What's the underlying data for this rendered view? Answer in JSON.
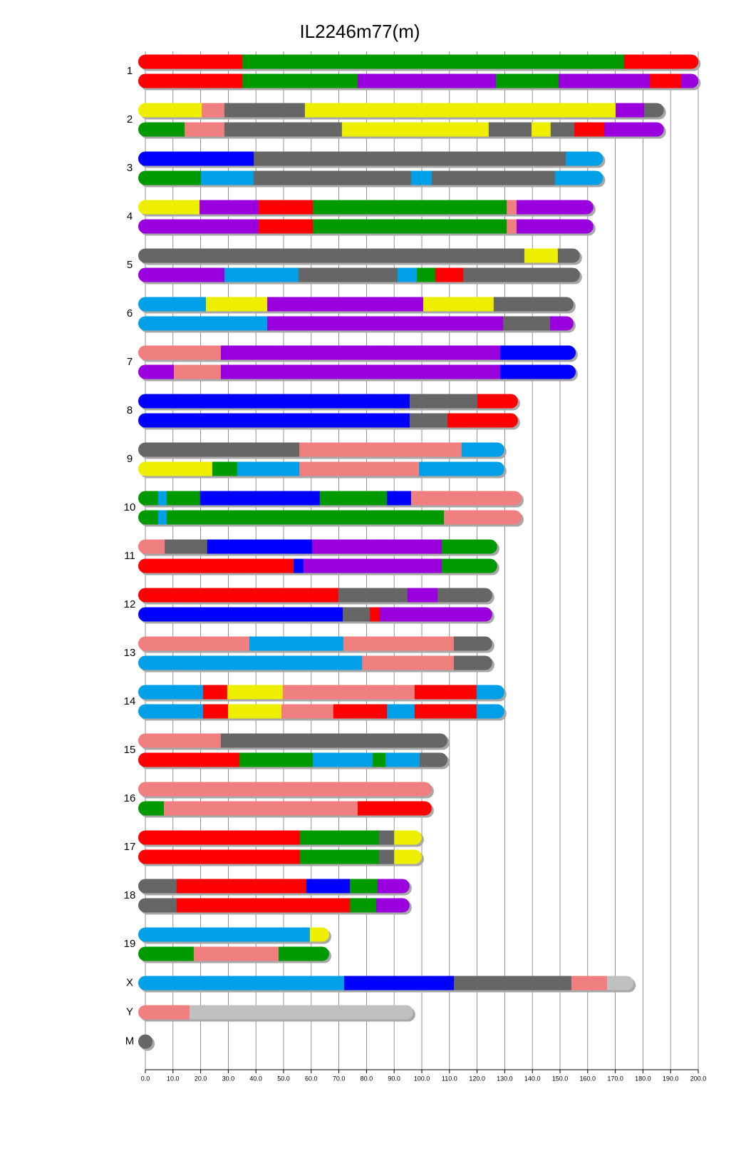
{
  "chart_data": {
    "type": "ideogram",
    "title": "IL2246m77(m)",
    "xlim": [
      0,
      200
    ],
    "xticks": [
      {
        "value": 0,
        "label": "0.0"
      },
      {
        "value": 10,
        "label": "10.0"
      },
      {
        "value": 20,
        "label": "20.0"
      },
      {
        "value": 30,
        "label": "30.0"
      },
      {
        "value": 40,
        "label": "40.0"
      },
      {
        "value": 50,
        "label": "50.0"
      },
      {
        "value": 60,
        "label": "60.0"
      },
      {
        "value": 70,
        "label": "70.0"
      },
      {
        "value": 80,
        "label": "80.0"
      },
      {
        "value": 90,
        "label": "90.0"
      },
      {
        "value": 100,
        "label": "100.0"
      },
      {
        "value": 110,
        "label": "110.0"
      },
      {
        "value": 120,
        "label": "120.0"
      },
      {
        "value": 130,
        "label": "130.0"
      },
      {
        "value": 140,
        "label": "140.0"
      },
      {
        "value": 150,
        "label": "150.0"
      },
      {
        "value": 160,
        "label": "160.0"
      },
      {
        "value": 170,
        "label": "170.0"
      },
      {
        "value": 180,
        "label": "180.0"
      },
      {
        "value": 190,
        "label": "190.0"
      },
      {
        "value": 200,
        "label": "200.0"
      }
    ],
    "grid": true,
    "chromosomes": [
      {
        "name": "1",
        "haplotypes": [
          {
            "ends": [
              35.1,
              173.2,
              197.5
            ],
            "colors": [
              "#ff0000",
              "#009900",
              "#ff0000"
            ]
          },
          {
            "ends": [
              35.1,
              76.8,
              126.8,
              149.5,
              182.5,
              193.8,
              197.5
            ],
            "colors": [
              "#ff0000",
              "#009900",
              "#9900dd",
              "#009900",
              "#9900dd",
              "#ff0000",
              "#9900dd"
            ]
          }
        ]
      },
      {
        "name": "2",
        "haplotypes": [
          {
            "ends": [
              20.4,
              28.6,
              57.7,
              170.1,
              180.4,
              185
            ],
            "colors": [
              "#eeee00",
              "#f08080",
              "#666666",
              "#eeee00",
              "#9900dd",
              "#666666"
            ]
          },
          {
            "ends": [
              14.2,
              28.6,
              71.1,
              124.2,
              139.7,
              146.6,
              155.2,
              166,
              185
            ],
            "colors": [
              "#009900",
              "#f08080",
              "#666666",
              "#eeee00",
              "#666666",
              "#eeee00",
              "#666666",
              "#ff0000",
              "#9900dd"
            ]
          }
        ]
      },
      {
        "name": "3",
        "haplotypes": [
          {
            "ends": [
              39.2,
              152.1,
              163
            ],
            "colors": [
              "#0000ff",
              "#666666",
              "#00a0e8"
            ]
          },
          {
            "ends": [
              20.1,
              39.2,
              96.1,
              103.6,
              148.2,
              163
            ],
            "colors": [
              "#009900",
              "#00a0e8",
              "#666666",
              "#00a0e8",
              "#666666",
              "#00a0e8"
            ]
          }
        ]
      },
      {
        "name": "4",
        "haplotypes": [
          {
            "ends": [
              19.6,
              41,
              60.6,
              130.7,
              134.3,
              159.5
            ],
            "colors": [
              "#eeee00",
              "#9900dd",
              "#ff0000",
              "#009900",
              "#f08080",
              "#9900dd"
            ]
          },
          {
            "ends": [
              41,
              60.6,
              130.7,
              134.3,
              159.5
            ],
            "colors": [
              "#9900dd",
              "#ff0000",
              "#009900",
              "#f08080",
              "#9900dd"
            ]
          }
        ]
      },
      {
        "name": "5",
        "haplotypes": [
          {
            "ends": [
              137.1,
              149.2,
              154.6
            ],
            "colors": [
              "#666666",
              "#eeee00",
              "#666666"
            ]
          },
          {
            "ends": [
              28.6,
              55.4,
              91.2,
              98.2,
              104.9,
              115,
              154.6
            ],
            "colors": [
              "#9900dd",
              "#00a0e8",
              "#666666",
              "#00a0e8",
              "#009900",
              "#ff0000",
              "#666666"
            ]
          }
        ]
      },
      {
        "name": "6",
        "haplotypes": [
          {
            "ends": [
              21.9,
              44.1,
              100.5,
              126,
              152.3
            ],
            "colors": [
              "#00a0e8",
              "#eeee00",
              "#9900dd",
              "#eeee00",
              "#666666"
            ]
          },
          {
            "ends": [
              44.1,
              129.4,
              146.4,
              152.3
            ],
            "colors": [
              "#00a0e8",
              "#9900dd",
              "#666666",
              "#9900dd"
            ]
          }
        ]
      },
      {
        "name": "7",
        "haplotypes": [
          {
            "ends": [
              27.3,
              128.4,
              153.1
            ],
            "colors": [
              "#f08080",
              "#9900dd",
              "#0000ff"
            ]
          },
          {
            "ends": [
              10.3,
              27.3,
              128.4,
              153.1
            ],
            "colors": [
              "#9900dd",
              "#f08080",
              "#9900dd",
              "#0000ff"
            ]
          }
        ]
      },
      {
        "name": "8",
        "haplotypes": [
          {
            "ends": [
              95.6,
              120.1,
              132.2
            ],
            "colors": [
              "#0000ff",
              "#666666",
              "#ff0000"
            ]
          },
          {
            "ends": [
              95.6,
              109.3,
              132.2
            ],
            "colors": [
              "#0000ff",
              "#666666",
              "#ff0000"
            ]
          }
        ]
      },
      {
        "name": "9",
        "haplotypes": [
          {
            "ends": [
              55.7,
              114.4,
              127.3
            ],
            "colors": [
              "#666666",
              "#f08080",
              "#00a0e8"
            ]
          },
          {
            "ends": [
              24.2,
              33.2,
              55.7,
              99,
              127.3
            ],
            "colors": [
              "#eeee00",
              "#009900",
              "#00a0e8",
              "#f08080",
              "#00a0e8"
            ]
          }
        ]
      },
      {
        "name": "10",
        "haplotypes": [
          {
            "ends": [
              4.6,
              7.7,
              19.8,
              63.1,
              87.4,
              96.1,
              133.5
            ],
            "colors": [
              "#009900",
              "#00a0e8",
              "#009900",
              "#0000ff",
              "#009900",
              "#0000ff",
              "#f08080"
            ]
          },
          {
            "ends": [
              4.6,
              7.7,
              108,
              133.5
            ],
            "colors": [
              "#009900",
              "#00a0e8",
              "#009900",
              "#f08080"
            ]
          }
        ]
      },
      {
        "name": "11",
        "haplotypes": [
          {
            "ends": [
              7,
              22.4,
              60.3,
              107.2,
              124.7
            ],
            "colors": [
              "#f08080",
              "#666666",
              "#0000ff",
              "#9900dd",
              "#009900"
            ]
          },
          {
            "ends": [
              53.6,
              57.2,
              107.2,
              124.7
            ],
            "colors": [
              "#ff0000",
              "#0000ff",
              "#9900dd",
              "#009900"
            ]
          }
        ]
      },
      {
        "name": "12",
        "haplotypes": [
          {
            "ends": [
              69.8,
              94.8,
              105.7,
              122.9
            ],
            "colors": [
              "#ff0000",
              "#666666",
              "#9900dd",
              "#666666"
            ]
          },
          {
            "ends": [
              71.4,
              81.2,
              84.8,
              122.9
            ],
            "colors": [
              "#0000ff",
              "#666666",
              "#ff0000",
              "#9900dd"
            ]
          }
        ]
      },
      {
        "name": "13",
        "haplotypes": [
          {
            "ends": [
              37.6,
              71.6,
              111.6,
              122.9
            ],
            "colors": [
              "#f08080",
              "#00a0e8",
              "#f08080",
              "#666666"
            ]
          },
          {
            "ends": [
              78.4,
              111.6,
              122.9
            ],
            "colors": [
              "#00a0e8",
              "#f08080",
              "#666666"
            ]
          }
        ]
      },
      {
        "name": "14",
        "haplotypes": [
          {
            "ends": [
              20.9,
              29.6,
              49.7,
              97.4,
              119.8,
              127.3
            ],
            "colors": [
              "#00a0e8",
              "#ff0000",
              "#eeee00",
              "#f08080",
              "#ff0000",
              "#00a0e8"
            ]
          },
          {
            "ends": [
              20.9,
              29.9,
              49.2,
              68,
              87.4,
              97.4,
              119.8,
              127.3
            ],
            "colors": [
              "#00a0e8",
              "#ff0000",
              "#eeee00",
              "#f08080",
              "#ff0000",
              "#00a0e8",
              "#ff0000",
              "#00a0e8"
            ]
          }
        ]
      },
      {
        "name": "15",
        "haplotypes": [
          {
            "ends": [
              27.3,
              106.7
            ],
            "colors": [
              "#f08080",
              "#666666"
            ]
          },
          {
            "ends": [
              34,
              60.6,
              82.2,
              86.9,
              99.2,
              106.7
            ],
            "colors": [
              "#ff0000",
              "#009900",
              "#00a0e8",
              "#009900",
              "#00a0e8",
              "#666666"
            ]
          }
        ]
      },
      {
        "name": "16",
        "haplotypes": [
          {
            "ends": [
              101
            ],
            "colors": [
              "#f08080"
            ]
          },
          {
            "ends": [
              6.7,
              76.8,
              101
            ],
            "colors": [
              "#009900",
              "#f08080",
              "#ff0000"
            ]
          }
        ]
      },
      {
        "name": "17",
        "haplotypes": [
          {
            "ends": [
              55.9,
              84.5,
              90,
              97.4
            ],
            "colors": [
              "#ff0000",
              "#009900",
              "#666666",
              "#eeee00"
            ]
          },
          {
            "ends": [
              55.9,
              84.5,
              90,
              97.4
            ],
            "colors": [
              "#ff0000",
              "#009900",
              "#666666",
              "#eeee00"
            ]
          }
        ]
      },
      {
        "name": "18",
        "haplotypes": [
          {
            "ends": [
              11.3,
              58.2,
              74,
              84,
              93
            ],
            "colors": [
              "#666666",
              "#ff0000",
              "#0000ff",
              "#009900",
              "#9900dd"
            ]
          },
          {
            "ends": [
              11.3,
              74,
              83.5,
              93
            ],
            "colors": [
              "#666666",
              "#ff0000",
              "#009900",
              "#9900dd"
            ]
          }
        ]
      },
      {
        "name": "19",
        "haplotypes": [
          {
            "ends": [
              59.5,
              63.9
            ],
            "colors": [
              "#00a0e8",
              "#eeee00"
            ]
          },
          {
            "ends": [
              17.5,
              48.2,
              63.9
            ],
            "colors": [
              "#009900",
              "#f08080",
              "#009900"
            ]
          }
        ]
      },
      {
        "name": "X",
        "haplotypes": [
          {
            "ends": [
              71.9,
              111.6,
              154.1,
              167,
              174
            ],
            "colors": [
              "#00a0e8",
              "#0000ff",
              "#666666",
              "#f08080",
              "#c0c0c0"
            ]
          }
        ]
      },
      {
        "name": "Y",
        "haplotypes": [
          {
            "ends": [
              16,
              94.3
            ],
            "colors": [
              "#f08080",
              "#c0c0c0"
            ]
          }
        ]
      },
      {
        "name": "M",
        "haplotypes": [
          {
            "ends": [
              0.02
            ],
            "colors": [
              "#666666"
            ]
          }
        ]
      }
    ]
  }
}
